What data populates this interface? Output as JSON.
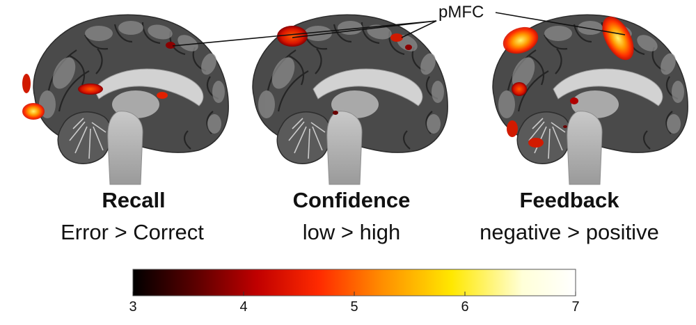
{
  "panels": [
    {
      "title": "Recall",
      "contrast": "Error > Correct"
    },
    {
      "title": "Confidence",
      "contrast": "low > high"
    },
    {
      "title": "Feedback",
      "contrast": "negative > positive"
    }
  ],
  "callout": {
    "label": "pMFC"
  },
  "colorbar": {
    "min": 3,
    "max": 7,
    "ticks": [
      "3",
      "4",
      "5",
      "6",
      "7"
    ],
    "stops": [
      "#000000",
      "#5a0000",
      "#c00000",
      "#ff2a00",
      "#ff8c00",
      "#ffe800",
      "#ffffd8",
      "#ffffff"
    ]
  },
  "colors": {
    "brain_dark": "#3f3f3f",
    "brain_mid": "#7d7d7d",
    "brain_light": "#cfcfcf",
    "activation_core": "#fff36a",
    "activation_mid": "#ff8a00",
    "activation_edge": "#e31a00"
  }
}
